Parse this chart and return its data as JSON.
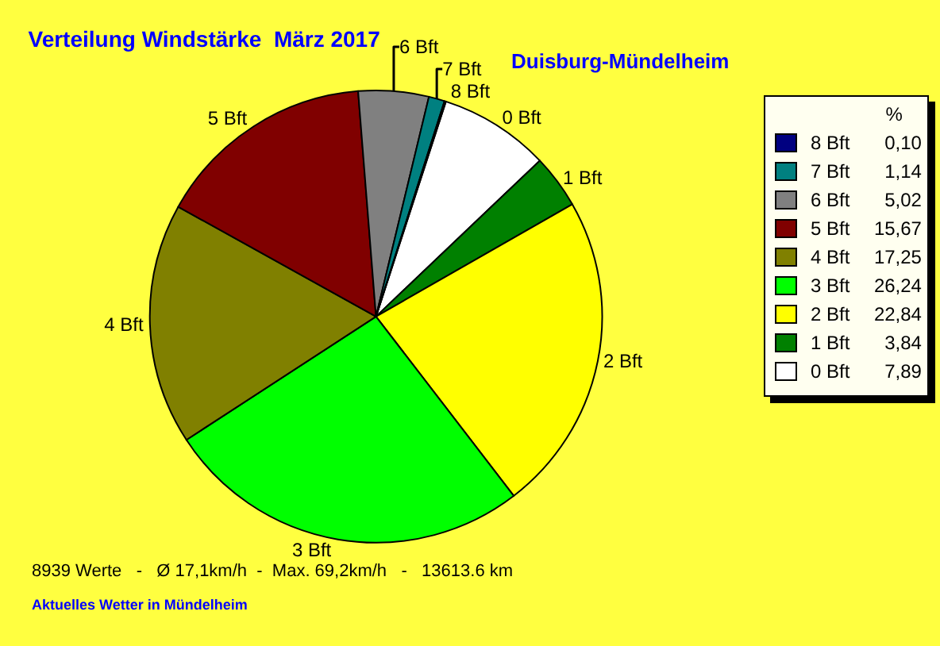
{
  "chart_data": {
    "type": "pie",
    "title": "Verteilung Windstärke  März 2017",
    "subtitle": "Duisburg-Mündelheim",
    "legend_title": "%",
    "legend": "right",
    "categories": [
      "0 Bft",
      "1 Bft",
      "2 Bft",
      "3 Bft",
      "4 Bft",
      "5 Bft",
      "6 Bft",
      "7 Bft",
      "8 Bft"
    ],
    "values": [
      7.89,
      3.84,
      22.84,
      26.24,
      17.25,
      15.67,
      5.02,
      1.14,
      0.1
    ],
    "value_labels": [
      "7,89",
      "3,84",
      "22,84",
      "26,24",
      "17,25",
      "15,67",
      "5,02",
      "1,14",
      "0,10"
    ],
    "colors": [
      "#ffffff",
      "#008000",
      "#ffff00",
      "#00ff00",
      "#808000",
      "#800000",
      "#808080",
      "#008080",
      "#000080"
    ],
    "annotations": [
      "8939 Werte   -   Ø 17,1km/h  -  Max. 69,2km/h   -   13613.6 km",
      "Aktuelles Wetter in Mündelheim"
    ]
  }
}
